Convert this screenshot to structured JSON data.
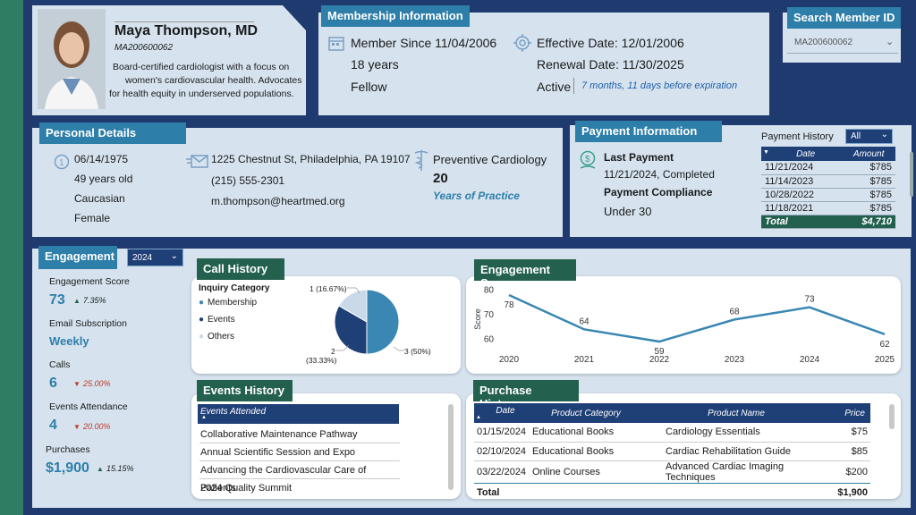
{
  "profile": {
    "name": "Maya Thompson, MD",
    "member_id": "MA200600062",
    "bio_line1": "Board-certified cardiologist with a focus on",
    "bio_line2": "women's cardiovascular health. Advocates",
    "bio_line3": "for health equity in underserved populations."
  },
  "membership": {
    "header": "Membership Information",
    "member_since": "Member Since 11/04/2006",
    "years": "18 years",
    "level": "Fellow",
    "effective": "Effective Date: 12/01/2006",
    "renewal": "Renewal Date: 11/30/2025",
    "status": "Active",
    "expiry_note": "7 months, 11 days before expiration"
  },
  "search": {
    "header": "Search Member ID",
    "value": "MA200600062"
  },
  "personal": {
    "header": "Personal Details",
    "dob": "06/14/1975",
    "age": "49 years old",
    "ethnicity": "Caucasian",
    "gender": "Female",
    "address": "1225 Chestnut St, Philadelphia, PA 19107",
    "phone": "(215) 555-2301",
    "email": "m.thompson@heartmed.org",
    "specialty": "Preventive Cardiology",
    "years_practice": "20",
    "years_practice_label": "Years of Practice"
  },
  "payment": {
    "header": "Payment Information",
    "last_label": "Last Payment",
    "last_value": "11/21/2024, Completed",
    "compliance_label": "Payment Compliance",
    "compliance_value": "Under 30",
    "history_label": "Payment History",
    "history_filter": "All",
    "col_date": "Date",
    "col_amount": "Amount",
    "rows": [
      {
        "date": "11/21/2024",
        "amount": "$785"
      },
      {
        "date": "11/14/2023",
        "amount": "$785"
      },
      {
        "date": "10/28/2022",
        "amount": "$785"
      },
      {
        "date": "11/18/2021",
        "amount": "$785"
      }
    ],
    "total_label": "Total",
    "total_value": "$4,710"
  },
  "engagement": {
    "header": "Engagement",
    "year": "2024",
    "score_label": "Engagement Score",
    "score_value": "73",
    "score_change": "7.35%",
    "email_label": "Email Subscription",
    "email_value": "Weekly",
    "calls_label": "Calls",
    "calls_value": "6",
    "calls_change": "25.00%",
    "events_label": "Events Attendance",
    "events_value": "4",
    "events_change": "20.00%",
    "purchases_label": "Purchases",
    "purchases_value": "$1,900",
    "purchases_change": "15.15%"
  },
  "call_history": {
    "header": "Call History",
    "legend_title": "Inquiry Category",
    "legend": [
      "Membership",
      "Events",
      "Others"
    ],
    "label_others": "1 (16.67%)",
    "label_events_count": "2",
    "label_events_pct": "(33.33%)",
    "label_membership": "3 (50%)"
  },
  "chart_data": {
    "type": "line",
    "x": [
      "2020",
      "2021",
      "2022",
      "2023",
      "2024",
      "2025"
    ],
    "series": [
      {
        "values": [
          78,
          64,
          59,
          68,
          73,
          62
        ]
      }
    ],
    "ylabel": "Score",
    "ylim": [
      55,
      82
    ],
    "yticks": [
      "80",
      "70",
      "60"
    ],
    "grid": false
  },
  "engagement_score": {
    "header": "Engagement Score"
  },
  "events_history": {
    "header": "Events History",
    "col": "Events Attended",
    "rows": [
      "Collaborative Maintenance Pathway",
      "Annual Scientific Session and Expo",
      "Advancing the Cardiovascular Care of Patients",
      "2024 Quality Summit"
    ]
  },
  "purchase_history": {
    "header": "Purchase History",
    "cols": [
      "Date",
      "Product Category",
      "Product Name",
      "Price"
    ],
    "rows": [
      {
        "date": "01/15/2024",
        "category": "Educational Books",
        "name": "Cardiology Essentials",
        "price": "$75"
      },
      {
        "date": "02/10/2024",
        "category": "Educational Books",
        "name": "Cardiac Rehabilitation Guide",
        "price": "$85"
      },
      {
        "date": "03/22/2024",
        "category": "Online Courses",
        "name": "Advanced Cardiac Imaging Techniques",
        "price": "$200"
      }
    ],
    "total_label": "Total",
    "total_value": "$1,900"
  },
  "colors": {
    "navy": "#1f3f77",
    "teal": "#2d7ea8",
    "green": "#23604e",
    "pie_membership": "#3a87b3",
    "pie_events": "#1f3f77",
    "pie_others": "#c9d9ea",
    "up": "#23604e",
    "down": "#c0392b"
  }
}
